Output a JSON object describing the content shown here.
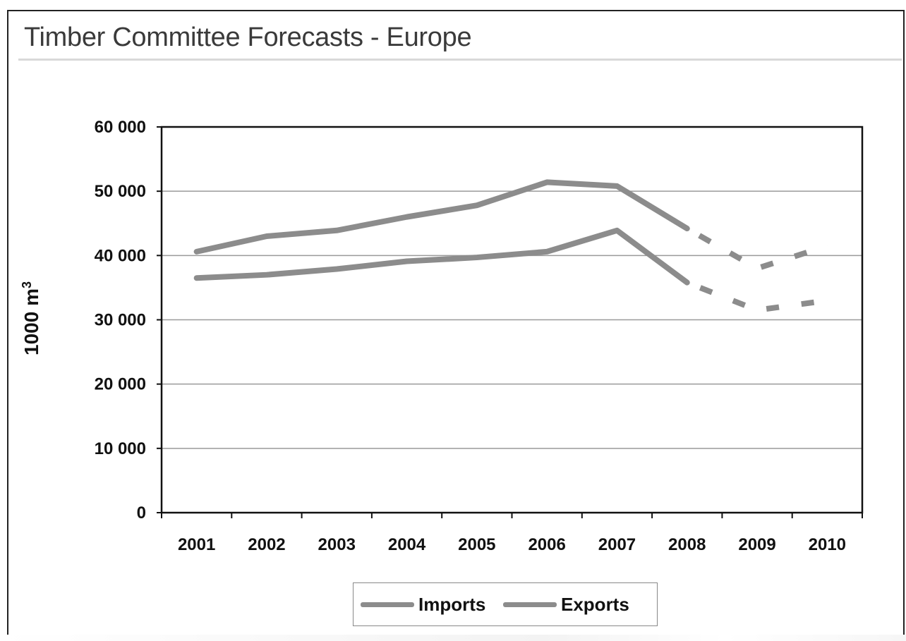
{
  "chart_data": {
    "type": "line",
    "title": "Timber Committee Forecasts - Europe",
    "ylabel": "1000 m",
    "ylabel_superscript": "3",
    "ylim": [
      0,
      60000
    ],
    "y_ticks": [
      "0",
      "10 000",
      "20 000",
      "30 000",
      "40 000",
      "50 000",
      "60 000"
    ],
    "y_tick_values": [
      0,
      10000,
      20000,
      30000,
      40000,
      50000,
      60000
    ],
    "categories": [
      "2001",
      "2002",
      "2003",
      "2004",
      "2005",
      "2006",
      "2007",
      "2008",
      "2009",
      "2010"
    ],
    "forecast_from": "2008",
    "grid": true,
    "legend_position": "bottom",
    "series": [
      {
        "name": "Imports",
        "color": "#8c8c8c",
        "values": [
          40600,
          43000,
          43900,
          46000,
          47800,
          51400,
          50800,
          44200,
          38000,
          41500
        ]
      },
      {
        "name": "Exports",
        "color": "#8c8c8c",
        "values": [
          36500,
          37000,
          37900,
          39100,
          39700,
          40600,
          43900,
          35800,
          31500,
          33000
        ]
      }
    ]
  }
}
